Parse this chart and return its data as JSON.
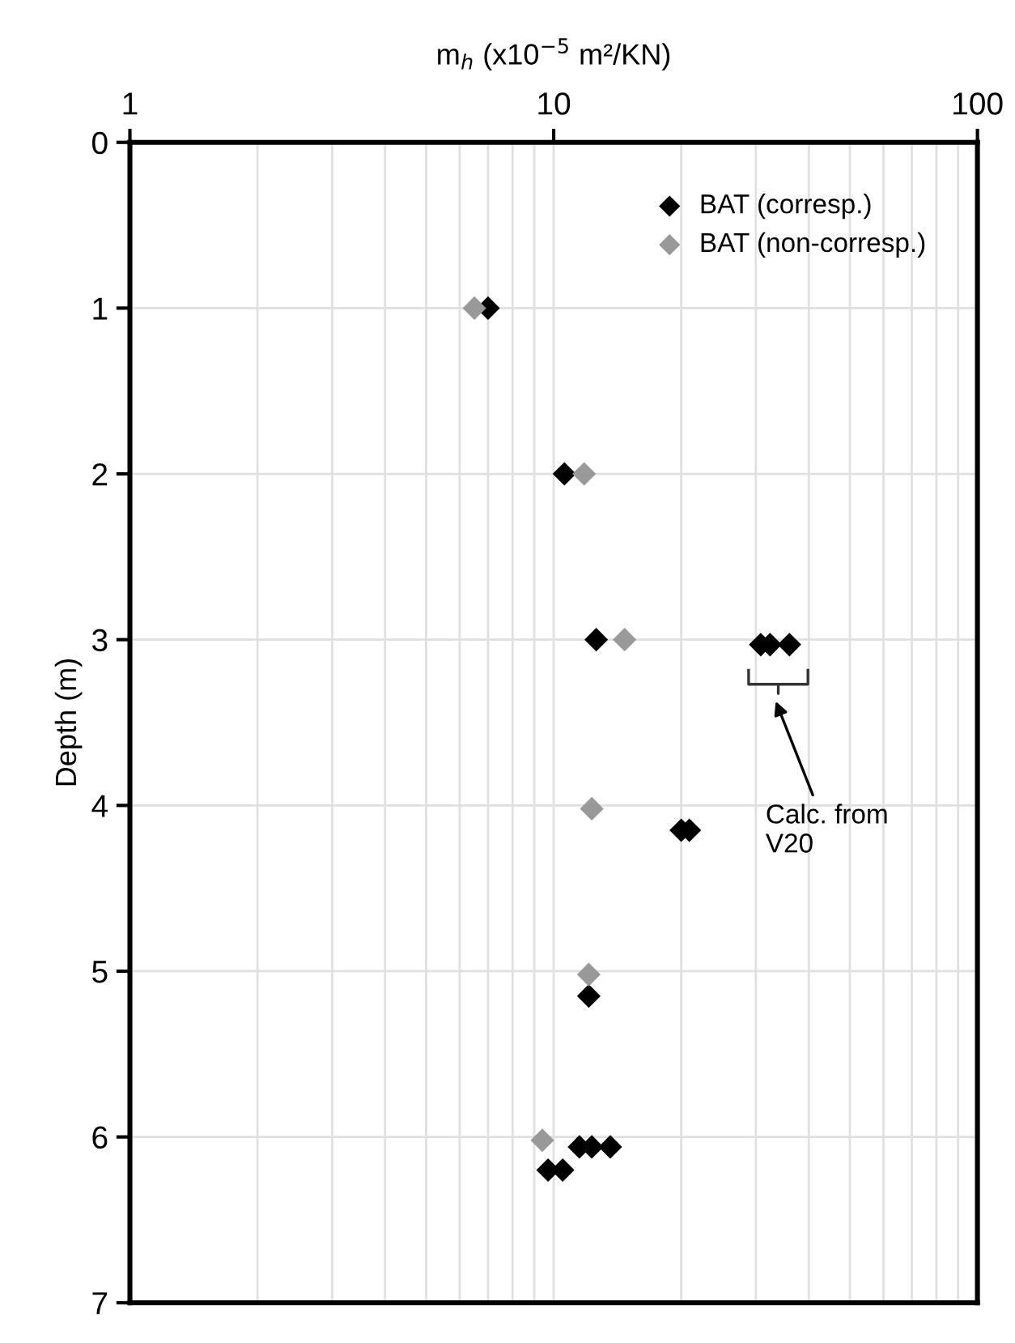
{
  "chart_data": {
    "type": "scatter",
    "xlabel": "m$_{h}$ (x10$^{−5}$ m²/KN)",
    "ylabel": "Depth (m)",
    "log": "x",
    "xlim": [
      1,
      100
    ],
    "xticks": [
      1,
      10,
      100
    ],
    "ylim": [
      7,
      0
    ],
    "yticks": [
      0,
      1,
      2,
      3,
      4,
      5,
      6,
      7
    ],
    "grid": true,
    "legend": "top right",
    "marker": "diamond",
    "series": [
      {
        "name": "BAT (corresp.)",
        "color": "#000000",
        "x": [
          7.0,
          10.6,
          12.6,
          30.8,
          32.4,
          36.0,
          20.0,
          20.9,
          12.1,
          11.5,
          12.3,
          13.6,
          9.7,
          10.5
        ],
        "values": [
          1.0,
          2.0,
          3.0,
          3.03,
          3.03,
          3.03,
          4.15,
          4.15,
          5.15,
          6.06,
          6.06,
          6.06,
          6.2,
          6.2
        ]
      },
      {
        "name": "BAT (non-corresp.)",
        "color": "#999999",
        "x": [
          6.5,
          11.8,
          14.7,
          12.3,
          12.1,
          9.4
        ],
        "values": [
          1.0,
          2.0,
          3.0,
          4.02,
          5.02,
          6.02
        ]
      }
    ],
    "annotations": [
      "Calc. from\nV20"
    ]
  }
}
